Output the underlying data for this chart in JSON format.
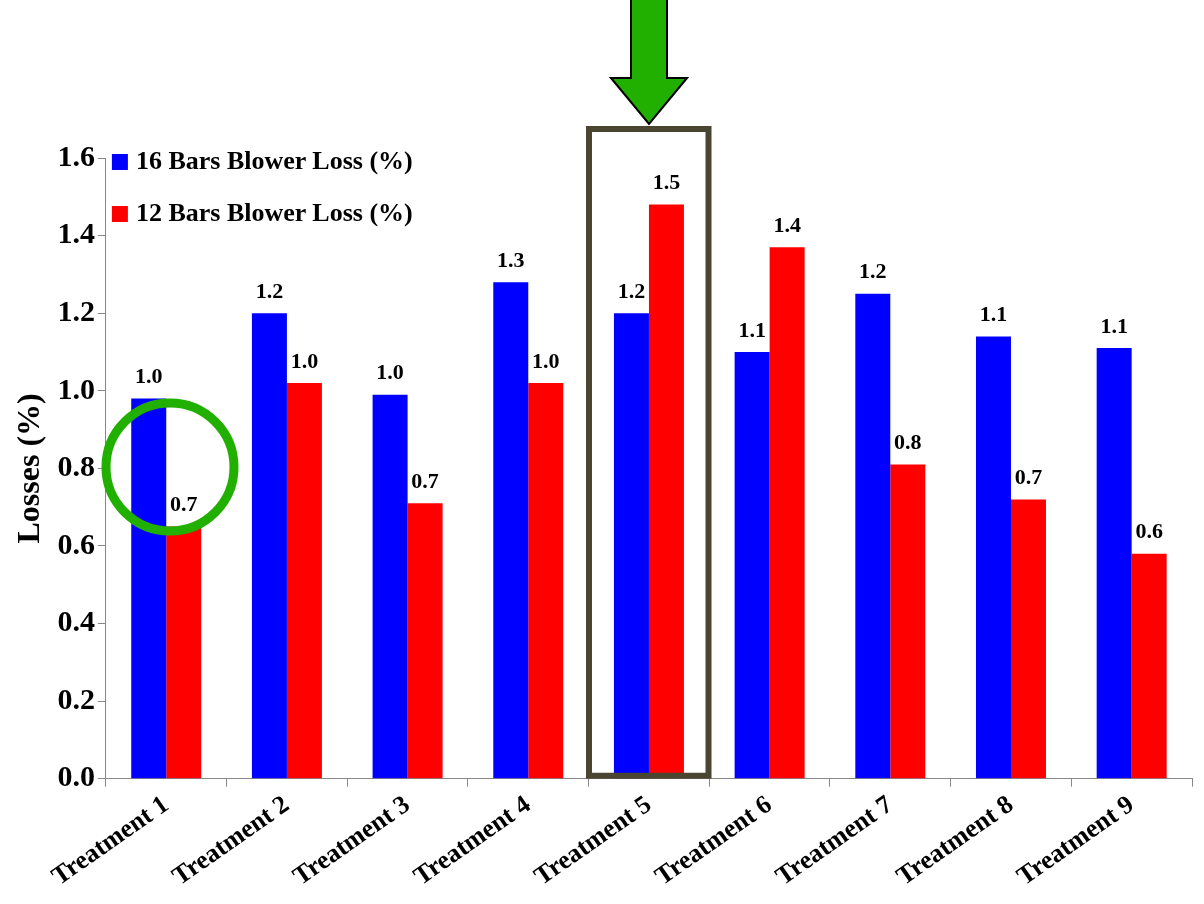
{
  "chart_data": {
    "type": "bar",
    "ylabel": "Losses (%)",
    "categories": [
      "Treatment 1",
      "Treatment 2",
      "Treatment 3",
      "Treatment 4",
      "Treatment 5",
      "Treatment 6",
      "Treatment 7",
      "Treatment 8",
      "Treatment 9"
    ],
    "series": [
      {
        "name": "16 Bars Blower Loss (%)",
        "color": "#0000ff",
        "values": [
          0.98,
          1.2,
          0.99,
          1.28,
          1.2,
          1.1,
          1.25,
          1.14,
          1.11
        ],
        "value_labels": [
          "1.0",
          "1.2",
          "1.0",
          "1.3",
          "1.2",
          "1.1",
          "1.2",
          "1.1",
          "1.1"
        ]
      },
      {
        "name": "12 Bars Blower Loss (%)",
        "color": "#ff0000",
        "values": [
          0.65,
          1.02,
          0.71,
          1.02,
          1.48,
          1.37,
          0.81,
          0.72,
          0.58
        ],
        "value_labels": [
          "0.7",
          "1.0",
          "0.7",
          "1.0",
          "1.5",
          "1.4",
          "0.8",
          "0.7",
          "0.6"
        ]
      }
    ],
    "ylim": [
      0,
      1.6
    ],
    "yticks": [
      {
        "value": 0,
        "label": "0.0"
      },
      {
        "value": 0.2,
        "label": "0.2"
      },
      {
        "value": 0.4,
        "label": "0.4"
      },
      {
        "value": 0.6,
        "label": "0.6"
      },
      {
        "value": 0.8,
        "label": "0.8"
      },
      {
        "value": 1,
        "label": "1.0"
      },
      {
        "value": 1.2,
        "label": "1.2"
      },
      {
        "value": 1.4,
        "label": "1.4"
      },
      {
        "value": 1.6,
        "label": "1.6"
      }
    ],
    "legend": "top left"
  }
}
